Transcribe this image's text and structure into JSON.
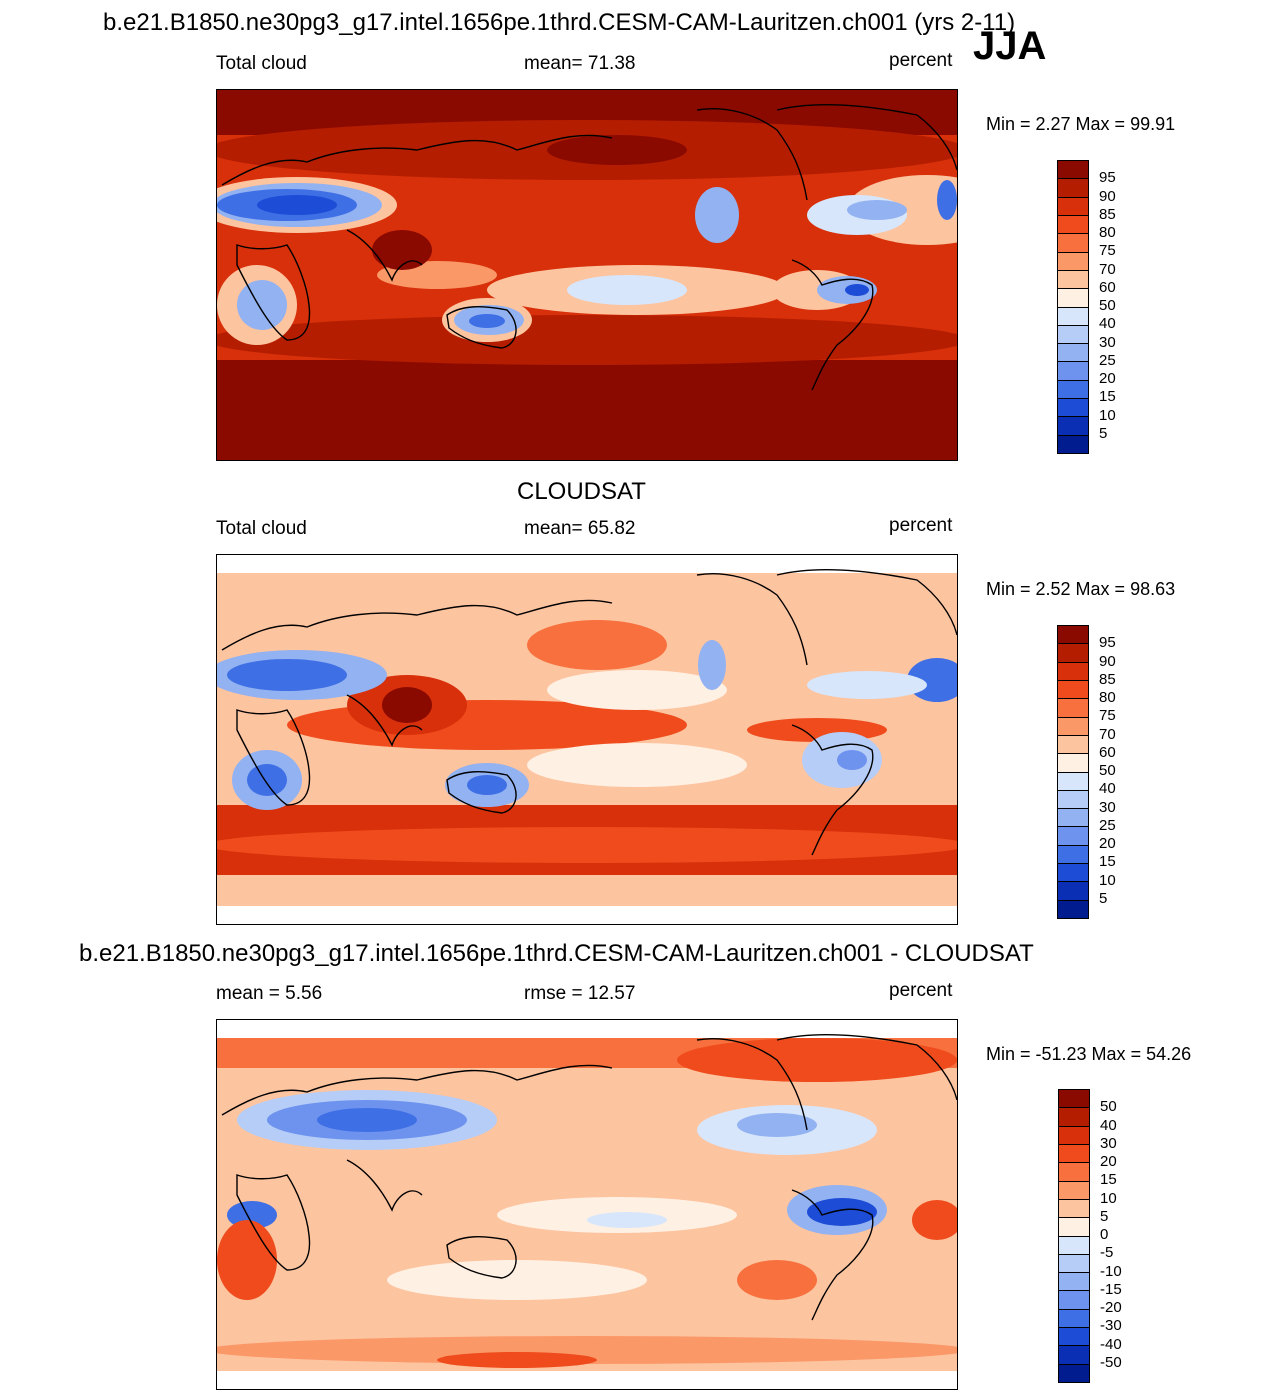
{
  "figure": {
    "season": "JJA",
    "units_label": "percent"
  },
  "panels": [
    {
      "id": "model",
      "title": "b.e21.B1850.ne30pg3_g17.intel.1656pe.1thrd.CESM-CAM-Lauritzen.ch001 (yrs 2-11)",
      "left_label": "Total cloud",
      "center_label": "mean=  71.38",
      "right_label": "percent",
      "minmax": "Min =   2.27 Max =  99.91"
    },
    {
      "id": "obs",
      "title": "CLOUDSAT",
      "left_label": "Total cloud",
      "center_label": "mean=  65.82",
      "right_label": "percent",
      "minmax": "Min =   2.52 Max =  98.63"
    },
    {
      "id": "diff",
      "title": "b.e21.B1850.ne30pg3_g17.intel.1656pe.1thrd.CESM-CAM-Lauritzen.ch001 - CLOUDSAT",
      "left_label": "mean =   5.56",
      "center_label": "rmse =  12.57",
      "right_label": "percent",
      "minmax": "Min = -51.23 Max =  54.26"
    }
  ],
  "chart_data": [
    {
      "type": "heatmap",
      "title": "Total cloud (model)",
      "units": "percent",
      "mean": 71.38,
      "min": 2.27,
      "max": 99.91,
      "colorbar_levels": [
        "95",
        "90",
        "85",
        "80",
        "75",
        "70",
        "60",
        "50",
        "40",
        "30",
        "25",
        "20",
        "15",
        "10",
        "5"
      ],
      "colorbar_colors": [
        "#8b0a00",
        "#b51d00",
        "#d7300a",
        "#ef4b1c",
        "#f7703d",
        "#fb9868",
        "#fdc4a0",
        "#fff0e4",
        "#d7e6fb",
        "#b6cdf7",
        "#92b2f2",
        "#6e93ee",
        "#3f6fe5",
        "#1d4cd6",
        "#0a2fb4",
        "#001c8e"
      ]
    },
    {
      "type": "heatmap",
      "title": "Total cloud (CLOUDSAT)",
      "units": "percent",
      "mean": 65.82,
      "min": 2.52,
      "max": 98.63,
      "colorbar_levels": [
        "95",
        "90",
        "85",
        "80",
        "75",
        "70",
        "60",
        "50",
        "40",
        "30",
        "25",
        "20",
        "15",
        "10",
        "5"
      ],
      "colorbar_colors": [
        "#8b0a00",
        "#b51d00",
        "#d7300a",
        "#ef4b1c",
        "#f7703d",
        "#fb9868",
        "#fdc4a0",
        "#fff0e4",
        "#d7e6fb",
        "#b6cdf7",
        "#92b2f2",
        "#6e93ee",
        "#3f6fe5",
        "#1d4cd6",
        "#0a2fb4",
        "#001c8e"
      ]
    },
    {
      "type": "heatmap",
      "title": "Model - CLOUDSAT",
      "units": "percent",
      "mean": 5.56,
      "rmse": 12.57,
      "min": -51.23,
      "max": 54.26,
      "colorbar_levels": [
        "50",
        "40",
        "30",
        "20",
        "15",
        "10",
        "5",
        "0",
        "-5",
        "-10",
        "-15",
        "-20",
        "-30",
        "-40",
        "-50"
      ],
      "colorbar_colors": [
        "#8b0a00",
        "#b51d00",
        "#d7300a",
        "#ef4b1c",
        "#f7703d",
        "#fb9868",
        "#fdc4a0",
        "#fff0e4",
        "#d7e6fb",
        "#b6cdf7",
        "#92b2f2",
        "#6e93ee",
        "#3f6fe5",
        "#1d4cd6",
        "#0a2fb4",
        "#001c8e"
      ]
    }
  ]
}
